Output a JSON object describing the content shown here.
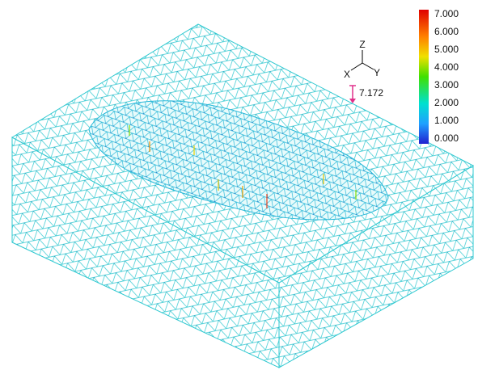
{
  "legend": {
    "ticks": [
      "7.000",
      "6.000",
      "5.000",
      "4.000",
      "3.000",
      "2.000",
      "1.000",
      "0.000"
    ]
  },
  "triad": {
    "z": "Z",
    "x": "X",
    "y": "Y"
  },
  "max_marker": "7.172"
}
